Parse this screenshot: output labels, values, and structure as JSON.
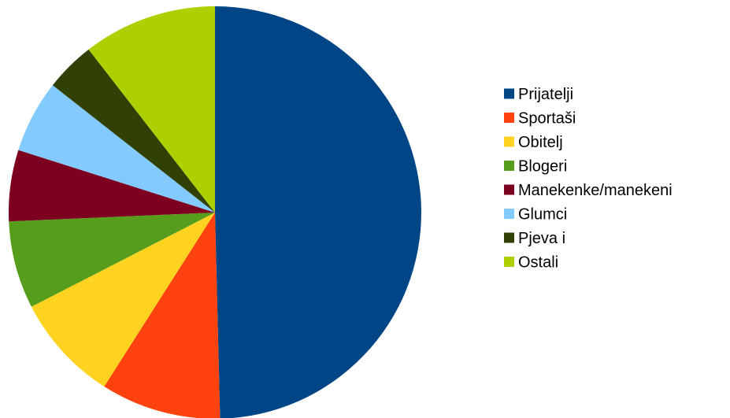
{
  "chart_data": {
    "type": "pie",
    "title": "",
    "categories": [
      "Prijatelji",
      "Sportaši",
      "Obitelj",
      "Blogeri",
      "Manekenke/manekeni",
      "Glumci",
      "Pjeva i",
      "Ostali"
    ],
    "values": [
      50.6,
      9.6,
      8.6,
      7.0,
      5.7,
      5.8,
      4.0,
      10.7
    ],
    "unit": "%",
    "colors": [
      "#004586",
      "#ff420e",
      "#ffd320",
      "#579d1c",
      "#7e0021",
      "#83caff",
      "#314004",
      "#aecf00"
    ],
    "start_angle_deg": 0,
    "direction": "clockwise",
    "legend": "right"
  }
}
